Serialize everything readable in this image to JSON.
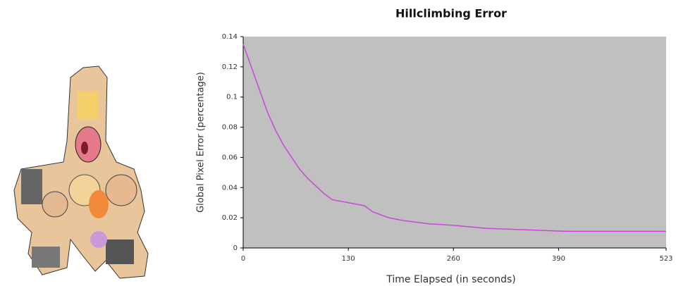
{
  "chart_data": {
    "type": "line",
    "title": "Hillclimbing Error",
    "x_label": "Time Elapsed (in seconds)",
    "y_label": "Global Pixel Error (percentage)",
    "x": [
      0,
      10,
      20,
      30,
      40,
      50,
      60,
      70,
      80,
      90,
      100,
      110,
      130,
      150,
      160,
      180,
      200,
      230,
      260,
      300,
      350,
      400,
      450,
      523
    ],
    "values": [
      0.135,
      0.12,
      0.105,
      0.09,
      0.078,
      0.068,
      0.06,
      0.052,
      0.046,
      0.041,
      0.036,
      0.032,
      0.03,
      0.028,
      0.024,
      0.02,
      0.018,
      0.016,
      0.015,
      0.013,
      0.012,
      0.011,
      0.011,
      0.011
    ],
    "color": "#cc44dd",
    "background": "#c0c0c0",
    "xlim": [
      0,
      523
    ],
    "ylim": [
      0,
      0.14
    ],
    "xticks": [
      0,
      130,
      260,
      390,
      523
    ],
    "yticks": [
      0,
      0.02,
      0.04,
      0.06,
      0.08,
      0.1,
      0.12,
      0.14
    ]
  }
}
